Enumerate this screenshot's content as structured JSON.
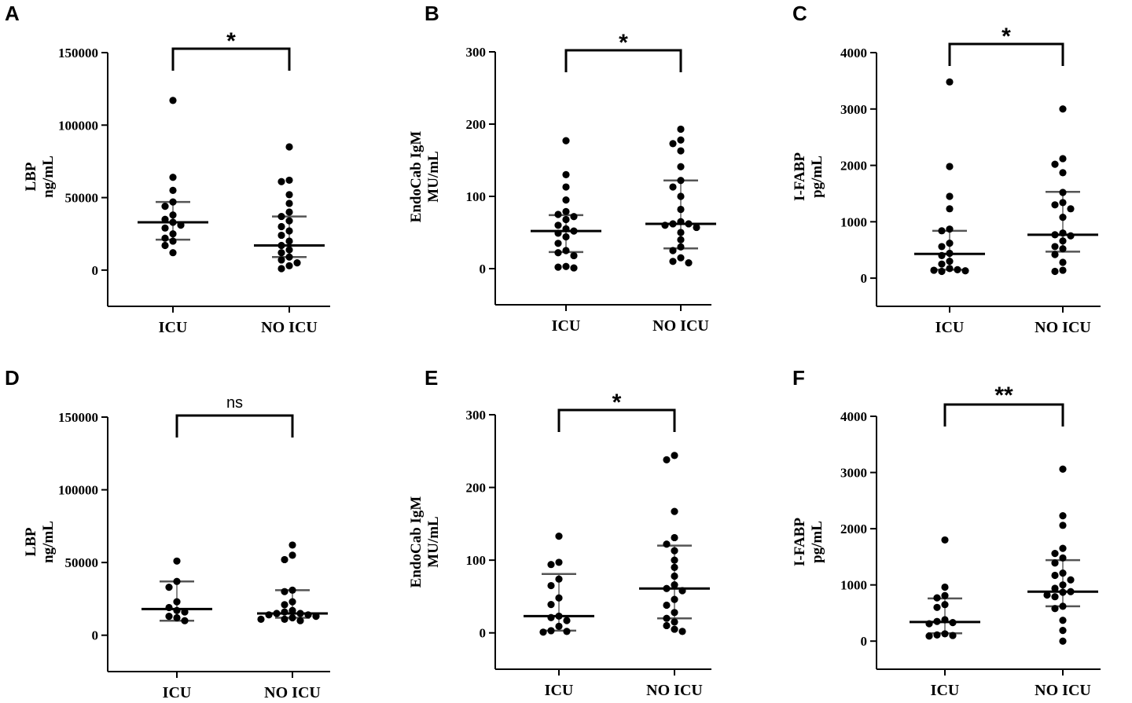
{
  "figure": {
    "categories": [
      "ICU",
      "NO ICU"
    ]
  },
  "chart_data": [
    {
      "panel": "A",
      "type": "scatter",
      "ylabel_lines": [
        "LBP",
        "ng/mL"
      ],
      "ylim": [
        -25000,
        150000
      ],
      "yticks": [
        0,
        50000,
        100000,
        150000
      ],
      "ytick_labels": [
        "0",
        "50000",
        "100000",
        "150000"
      ],
      "categories": [
        "ICU",
        "NO ICU"
      ],
      "significance": "*",
      "groups": [
        {
          "name": "ICU",
          "median": 33000,
          "q1": 21000,
          "q3": 47000,
          "points": [
            117000,
            64000,
            55000,
            47000,
            44000,
            38000,
            35000,
            33000,
            31000,
            29000,
            25000,
            22000,
            20000,
            17000,
            12000
          ]
        },
        {
          "name": "NO ICU",
          "median": 17000,
          "q1": 9000,
          "q3": 37000,
          "points": [
            85000,
            62000,
            61000,
            52000,
            46000,
            40000,
            37000,
            34000,
            30000,
            27000,
            24000,
            20000,
            17000,
            14000,
            12000,
            9000,
            7000,
            5000,
            3000,
            1000
          ]
        }
      ]
    },
    {
      "panel": "B",
      "type": "scatter",
      "ylabel_lines": [
        "EndoCab IgM",
        "MU/mL"
      ],
      "ylim": [
        -50,
        300
      ],
      "yticks": [
        0,
        100,
        200,
        300
      ],
      "ytick_labels": [
        "0",
        "100",
        "200",
        "300"
      ],
      "categories": [
        "ICU",
        "NO ICU"
      ],
      "significance": "*",
      "groups": [
        {
          "name": "ICU",
          "median": 52,
          "q1": 23,
          "q3": 74,
          "points": [
            177,
            130,
            113,
            95,
            79,
            75,
            72,
            68,
            60,
            55,
            52,
            49,
            44,
            35,
            25,
            22,
            18,
            3,
            2,
            1
          ]
        },
        {
          "name": "NO ICU",
          "median": 62,
          "q1": 28,
          "q3": 122,
          "points": [
            193,
            178,
            173,
            163,
            141,
            122,
            113,
            100,
            82,
            65,
            62,
            62,
            60,
            57,
            50,
            40,
            30,
            25,
            15,
            10,
            8
          ]
        }
      ]
    },
    {
      "panel": "C",
      "type": "scatter",
      "ylabel_lines": [
        "I-FABP",
        "pg/mL"
      ],
      "ylim": [
        -500,
        4000
      ],
      "yticks": [
        0,
        1000,
        2000,
        3000,
        4000
      ],
      "ytick_labels": [
        "0",
        "1000",
        "2000",
        "3000",
        "4000"
      ],
      "categories": [
        "ICU",
        "NO ICU"
      ],
      "significance": "*",
      "groups": [
        {
          "name": "ICU",
          "median": 430,
          "q1": 150,
          "q3": 840,
          "points": [
            3480,
            1980,
            1450,
            1230,
            870,
            840,
            620,
            560,
            440,
            400,
            300,
            250,
            170,
            150,
            140,
            130,
            120
          ]
        },
        {
          "name": "NO ICU",
          "median": 770,
          "q1": 470,
          "q3": 1530,
          "points": [
            3000,
            2120,
            2020,
            1870,
            1520,
            1340,
            1300,
            1230,
            1080,
            800,
            770,
            750,
            660,
            560,
            520,
            420,
            280,
            140,
            120
          ]
        }
      ]
    },
    {
      "panel": "D",
      "type": "scatter",
      "ylabel_lines": [
        "LBP",
        "ng/mL"
      ],
      "ylim": [
        -25000,
        150000
      ],
      "yticks": [
        0,
        50000,
        100000,
        150000
      ],
      "ytick_labels": [
        "0",
        "50000",
        "100000",
        "150000"
      ],
      "categories": [
        "ICU",
        "NO ICU"
      ],
      "significance": "ns",
      "groups": [
        {
          "name": "ICU",
          "median": 18000,
          "q1": 10000,
          "q3": 37000,
          "points": [
            51000,
            37000,
            33000,
            23000,
            19000,
            17000,
            16000,
            13000,
            12000,
            10000
          ]
        },
        {
          "name": "NO ICU",
          "median": 15000,
          "q1": 12000,
          "q3": 31000,
          "points": [
            62000,
            55000,
            52000,
            31000,
            30000,
            23000,
            21000,
            17000,
            16000,
            15000,
            15000,
            14000,
            14000,
            13000,
            12000,
            11000,
            11000,
            10000
          ]
        }
      ]
    },
    {
      "panel": "E",
      "type": "scatter",
      "ylabel_lines": [
        "EndoCab IgM",
        "MU/mL"
      ],
      "ylim": [
        -50,
        300
      ],
      "yticks": [
        0,
        100,
        200,
        300
      ],
      "ytick_labels": [
        "0",
        "100",
        "200",
        "300"
      ],
      "categories": [
        "ICU",
        "NO ICU"
      ],
      "significance": "*",
      "groups": [
        {
          "name": "ICU",
          "median": 23,
          "q1": 3,
          "q3": 81,
          "points": [
            133,
            97,
            94,
            74,
            65,
            48,
            39,
            23,
            21,
            17,
            9,
            3,
            2,
            1
          ]
        },
        {
          "name": "NO ICU",
          "median": 61,
          "q1": 20,
          "q3": 120,
          "points": [
            244,
            238,
            167,
            131,
            122,
            113,
            100,
            90,
            78,
            66,
            61,
            58,
            46,
            38,
            28,
            20,
            15,
            10,
            5,
            2
          ]
        }
      ]
    },
    {
      "panel": "F",
      "type": "scatter",
      "ylabel_lines": [
        "I-FABP",
        "pg/mL"
      ],
      "ylim": [
        -500,
        4000
      ],
      "yticks": [
        0,
        1000,
        2000,
        3000,
        4000
      ],
      "ytick_labels": [
        "0",
        "1000",
        "2000",
        "3000",
        "4000"
      ],
      "categories": [
        "ICU",
        "NO ICU"
      ],
      "significance": "**",
      "groups": [
        {
          "name": "ICU",
          "median": 340,
          "q1": 140,
          "q3": 760,
          "points": [
            1800,
            960,
            810,
            770,
            650,
            600,
            380,
            350,
            330,
            310,
            130,
            110,
            100,
            90
          ]
        },
        {
          "name": "NO ICU",
          "median": 880,
          "q1": 620,
          "q3": 1440,
          "points": [
            3060,
            2230,
            2060,
            1650,
            1560,
            1480,
            1390,
            1210,
            1170,
            1090,
            1000,
            940,
            880,
            870,
            820,
            790,
            620,
            580,
            370,
            190,
            0
          ]
        }
      ]
    }
  ]
}
